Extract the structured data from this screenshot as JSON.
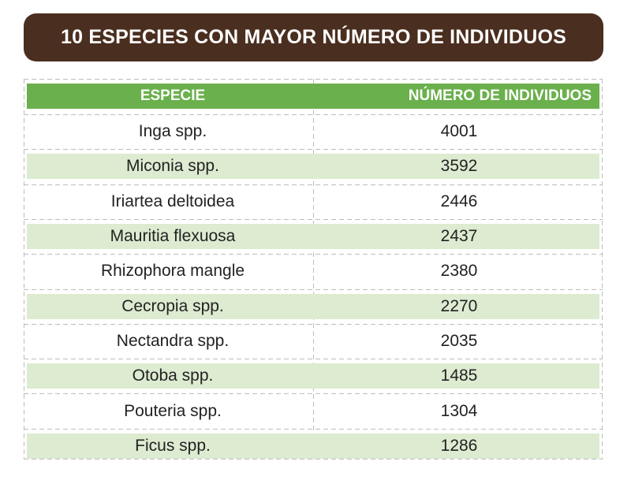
{
  "title": "10 ESPECIES CON MAYOR NÚMERO DE INDIVIDUOS",
  "colors": {
    "title_bg": "#4a2e1f",
    "header_bg": "#6ab04c",
    "stripe_bg": "#ddebd1",
    "grid_dash": "#bdbdbd"
  },
  "chart_data": {
    "type": "table",
    "columns": [
      "ESPECIE",
      "NÚMERO DE INDIVIDUOS"
    ],
    "rows": [
      {
        "species": "Inga spp.",
        "count": "4001"
      },
      {
        "species": "Miconia spp.",
        "count": "3592"
      },
      {
        "species": "Iriartea deltoidea",
        "count": "2446"
      },
      {
        "species": "Mauritia flexuosa",
        "count": "2437"
      },
      {
        "species": "Rhizophora mangle",
        "count": "2380"
      },
      {
        "species": "Cecropia spp.",
        "count": "2270"
      },
      {
        "species": "Nectandra spp.",
        "count": "2035"
      },
      {
        "species": "Otoba spp.",
        "count": "1485"
      },
      {
        "species": "Pouteria spp.",
        "count": "1304"
      },
      {
        "species": "Ficus spp.",
        "count": "1286"
      }
    ]
  }
}
